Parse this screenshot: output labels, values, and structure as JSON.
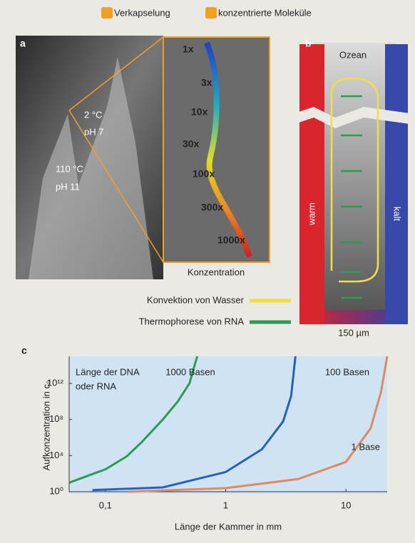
{
  "header": {
    "items": [
      "Verkapselung",
      "konzentrierte Moleküle"
    ]
  },
  "panel_a": {
    "label": "a",
    "top_temp": "2 °C",
    "top_ph": "pH 7",
    "bottom_temp": "110 °C",
    "bottom_ph": "pH 11",
    "concentrations": [
      "1x",
      "3x",
      "10x",
      "30x",
      "100x",
      "300x",
      "1000x"
    ],
    "caption": "Konzentration"
  },
  "panel_b": {
    "label": "b",
    "top": "Ozean",
    "left": "warm",
    "right": "kalt",
    "width": "150 µm"
  },
  "legend": [
    "Konvektion von Wasser",
    "Thermophorese von RNA"
  ],
  "chart_data": {
    "type": "line",
    "panel_label": "c",
    "x_label": "Länge der Kammer in mm",
    "y_label": "Aufkonzentration in c₀",
    "annotations": [
      "Länge der DNA",
      "oder RNA"
    ],
    "x_log": true,
    "y_log": true,
    "xlim": [
      0.05,
      22
    ],
    "ylim": [
      1,
      1000000000000000.0
    ],
    "xticks": [
      {
        "value": 0.1,
        "label": "0,1"
      },
      1,
      10
    ],
    "yticks": [
      {
        "value": 1,
        "label": "10⁰"
      },
      {
        "value": 10000,
        "label": "10⁴"
      },
      {
        "value": 100000000,
        "label": "10⁸"
      },
      {
        "value": 1000000000000,
        "label": "10¹²"
      }
    ],
    "series": [
      {
        "name": "1000 Basen",
        "color": "#2a9d55",
        "x": [
          0.05,
          0.1,
          0.15,
          0.2,
          0.3,
          0.4,
          0.5,
          0.58
        ],
        "values": [
          10,
          300,
          8000,
          300000,
          100000000,
          10000000000,
          1000000000000,
          1000000000000000
        ]
      },
      {
        "name": "100 Basen",
        "color": "#2461c0",
        "x": [
          0.078,
          0.3,
          1,
          2,
          3,
          3.5,
          3.8
        ],
        "values": [
          1.5,
          3,
          150,
          50000,
          60000000,
          40000000000,
          1000000000000000
        ]
      },
      {
        "name": "1 Base",
        "color": "#e08a62",
        "x": [
          0.155,
          1,
          4,
          10,
          16,
          19.5,
          22
        ],
        "values": [
          1,
          2.5,
          25,
          2000,
          10000000,
          100000000000,
          1000000000000000
        ]
      }
    ]
  }
}
